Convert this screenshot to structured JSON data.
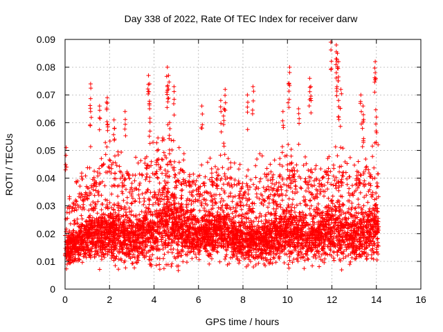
{
  "chart_data": {
    "type": "scatter",
    "title": "Day 338 of 2022, Rate Of TEC Index for receiver darw",
    "xlabel": "GPS time / hours",
    "ylabel": "ROTI / TECUs",
    "xlim": [
      0,
      16
    ],
    "ylim": [
      0,
      0.09
    ],
    "x_ticks": [
      0,
      2,
      4,
      6,
      8,
      10,
      12,
      14,
      16
    ],
    "x_tick_labels": [
      "0",
      "2",
      "4",
      "6",
      "8",
      "10",
      "12",
      "14",
      "16"
    ],
    "y_ticks": [
      0,
      0.01,
      0.02,
      0.03,
      0.04,
      0.05,
      0.06,
      0.07,
      0.08,
      0.09
    ],
    "y_tick_labels": [
      "0",
      "0.01",
      "0.02",
      "0.03",
      "0.04",
      "0.05",
      "0.06",
      "0.07",
      "0.08",
      "0.09"
    ],
    "grid": true,
    "marker": "+",
    "color": "#ff0000",
    "series": [
      {
        "name": "darw",
        "note": "dense cloud, approx. 0-14.1 h; representative envelope sampled every 0.25 h (estimated from figure)",
        "x": [
          0,
          0.25,
          0.5,
          0.75,
          1,
          1.25,
          1.5,
          1.75,
          2,
          2.25,
          2.5,
          2.75,
          3,
          3.25,
          3.5,
          3.75,
          4,
          4.25,
          4.5,
          4.75,
          5,
          5.25,
          5.5,
          5.75,
          6,
          6.25,
          6.5,
          6.75,
          7,
          7.25,
          7.5,
          7.75,
          8,
          8.25,
          8.5,
          8.75,
          9,
          9.25,
          9.5,
          9.75,
          10,
          10.25,
          10.5,
          10.75,
          11,
          11.25,
          11.5,
          11.75,
          12,
          12.25,
          12.5,
          12.75,
          13,
          13.25,
          13.5,
          13.75,
          14,
          14.1
        ],
        "y_low": [
          0.006,
          0.007,
          0.007,
          0.006,
          0.007,
          0.006,
          0.006,
          0.006,
          0.005,
          0.005,
          0.005,
          0.006,
          0.006,
          0.006,
          0.005,
          0.005,
          0.005,
          0.004,
          0.004,
          0.005,
          0.005,
          0.006,
          0.006,
          0.007,
          0.008,
          0.008,
          0.007,
          0.006,
          0.006,
          0.006,
          0.007,
          0.007,
          0.006,
          0.005,
          0.006,
          0.006,
          0.006,
          0.006,
          0.006,
          0.006,
          0.006,
          0.006,
          0.005,
          0.005,
          0.006,
          0.006,
          0.006,
          0.006,
          0.007,
          0.006,
          0.006,
          0.006,
          0.007,
          0.007,
          0.007,
          0.008,
          0.008,
          0.01
        ],
        "y_typical": [
          0.014,
          0.015,
          0.016,
          0.017,
          0.018,
          0.019,
          0.019,
          0.02,
          0.02,
          0.019,
          0.019,
          0.018,
          0.018,
          0.018,
          0.019,
          0.02,
          0.021,
          0.022,
          0.023,
          0.023,
          0.022,
          0.021,
          0.02,
          0.02,
          0.019,
          0.019,
          0.019,
          0.02,
          0.021,
          0.02,
          0.019,
          0.018,
          0.018,
          0.017,
          0.017,
          0.017,
          0.017,
          0.018,
          0.018,
          0.019,
          0.02,
          0.02,
          0.019,
          0.018,
          0.018,
          0.019,
          0.019,
          0.02,
          0.021,
          0.021,
          0.02,
          0.019,
          0.019,
          0.02,
          0.02,
          0.021,
          0.022,
          0.02
        ],
        "y_high": [
          0.03,
          0.035,
          0.037,
          0.04,
          0.042,
          0.045,
          0.048,
          0.05,
          0.052,
          0.052,
          0.05,
          0.047,
          0.045,
          0.045,
          0.047,
          0.05,
          0.052,
          0.052,
          0.052,
          0.052,
          0.05,
          0.048,
          0.045,
          0.044,
          0.042,
          0.043,
          0.045,
          0.048,
          0.05,
          0.048,
          0.045,
          0.043,
          0.042,
          0.043,
          0.045,
          0.047,
          0.046,
          0.046,
          0.045,
          0.047,
          0.05,
          0.05,
          0.048,
          0.046,
          0.045,
          0.045,
          0.045,
          0.047,
          0.05,
          0.05,
          0.048,
          0.045,
          0.045,
          0.047,
          0.048,
          0.05,
          0.05,
          0.05
        ],
        "spikes": [
          {
            "x": 0.05,
            "y": 0.051
          },
          {
            "x": 1.15,
            "y": 0.074
          },
          {
            "x": 1.15,
            "y": 0.064
          },
          {
            "x": 1.55,
            "y": 0.066
          },
          {
            "x": 1.9,
            "y": 0.069
          },
          {
            "x": 1.9,
            "y": 0.067
          },
          {
            "x": 2.2,
            "y": 0.061
          },
          {
            "x": 2.7,
            "y": 0.064
          },
          {
            "x": 3.75,
            "y": 0.077
          },
          {
            "x": 3.8,
            "y": 0.074
          },
          {
            "x": 3.8,
            "y": 0.065
          },
          {
            "x": 4.6,
            "y": 0.08
          },
          {
            "x": 4.65,
            "y": 0.077
          },
          {
            "x": 4.6,
            "y": 0.073
          },
          {
            "x": 4.9,
            "y": 0.073
          },
          {
            "x": 4.7,
            "y": 0.06
          },
          {
            "x": 6.15,
            "y": 0.066
          },
          {
            "x": 7.0,
            "y": 0.068
          },
          {
            "x": 7.2,
            "y": 0.072
          },
          {
            "x": 7.15,
            "y": 0.065
          },
          {
            "x": 8.45,
            "y": 0.073
          },
          {
            "x": 8.2,
            "y": 0.07
          },
          {
            "x": 9.8,
            "y": 0.064
          },
          {
            "x": 10.1,
            "y": 0.08
          },
          {
            "x": 10.05,
            "y": 0.074
          },
          {
            "x": 10.5,
            "y": 0.065
          },
          {
            "x": 11.0,
            "y": 0.076
          },
          {
            "x": 11.05,
            "y": 0.073
          },
          {
            "x": 11.95,
            "y": 0.089
          },
          {
            "x": 12.2,
            "y": 0.088
          },
          {
            "x": 12.25,
            "y": 0.085
          },
          {
            "x": 12.3,
            "y": 0.082
          },
          {
            "x": 12.2,
            "y": 0.078
          },
          {
            "x": 12.4,
            "y": 0.072
          },
          {
            "x": 12.3,
            "y": 0.068
          },
          {
            "x": 13.3,
            "y": 0.07
          },
          {
            "x": 13.4,
            "y": 0.066
          },
          {
            "x": 13.4,
            "y": 0.06
          },
          {
            "x": 13.95,
            "y": 0.082
          },
          {
            "x": 13.95,
            "y": 0.078
          },
          {
            "x": 14.0,
            "y": 0.062
          }
        ]
      }
    ]
  }
}
